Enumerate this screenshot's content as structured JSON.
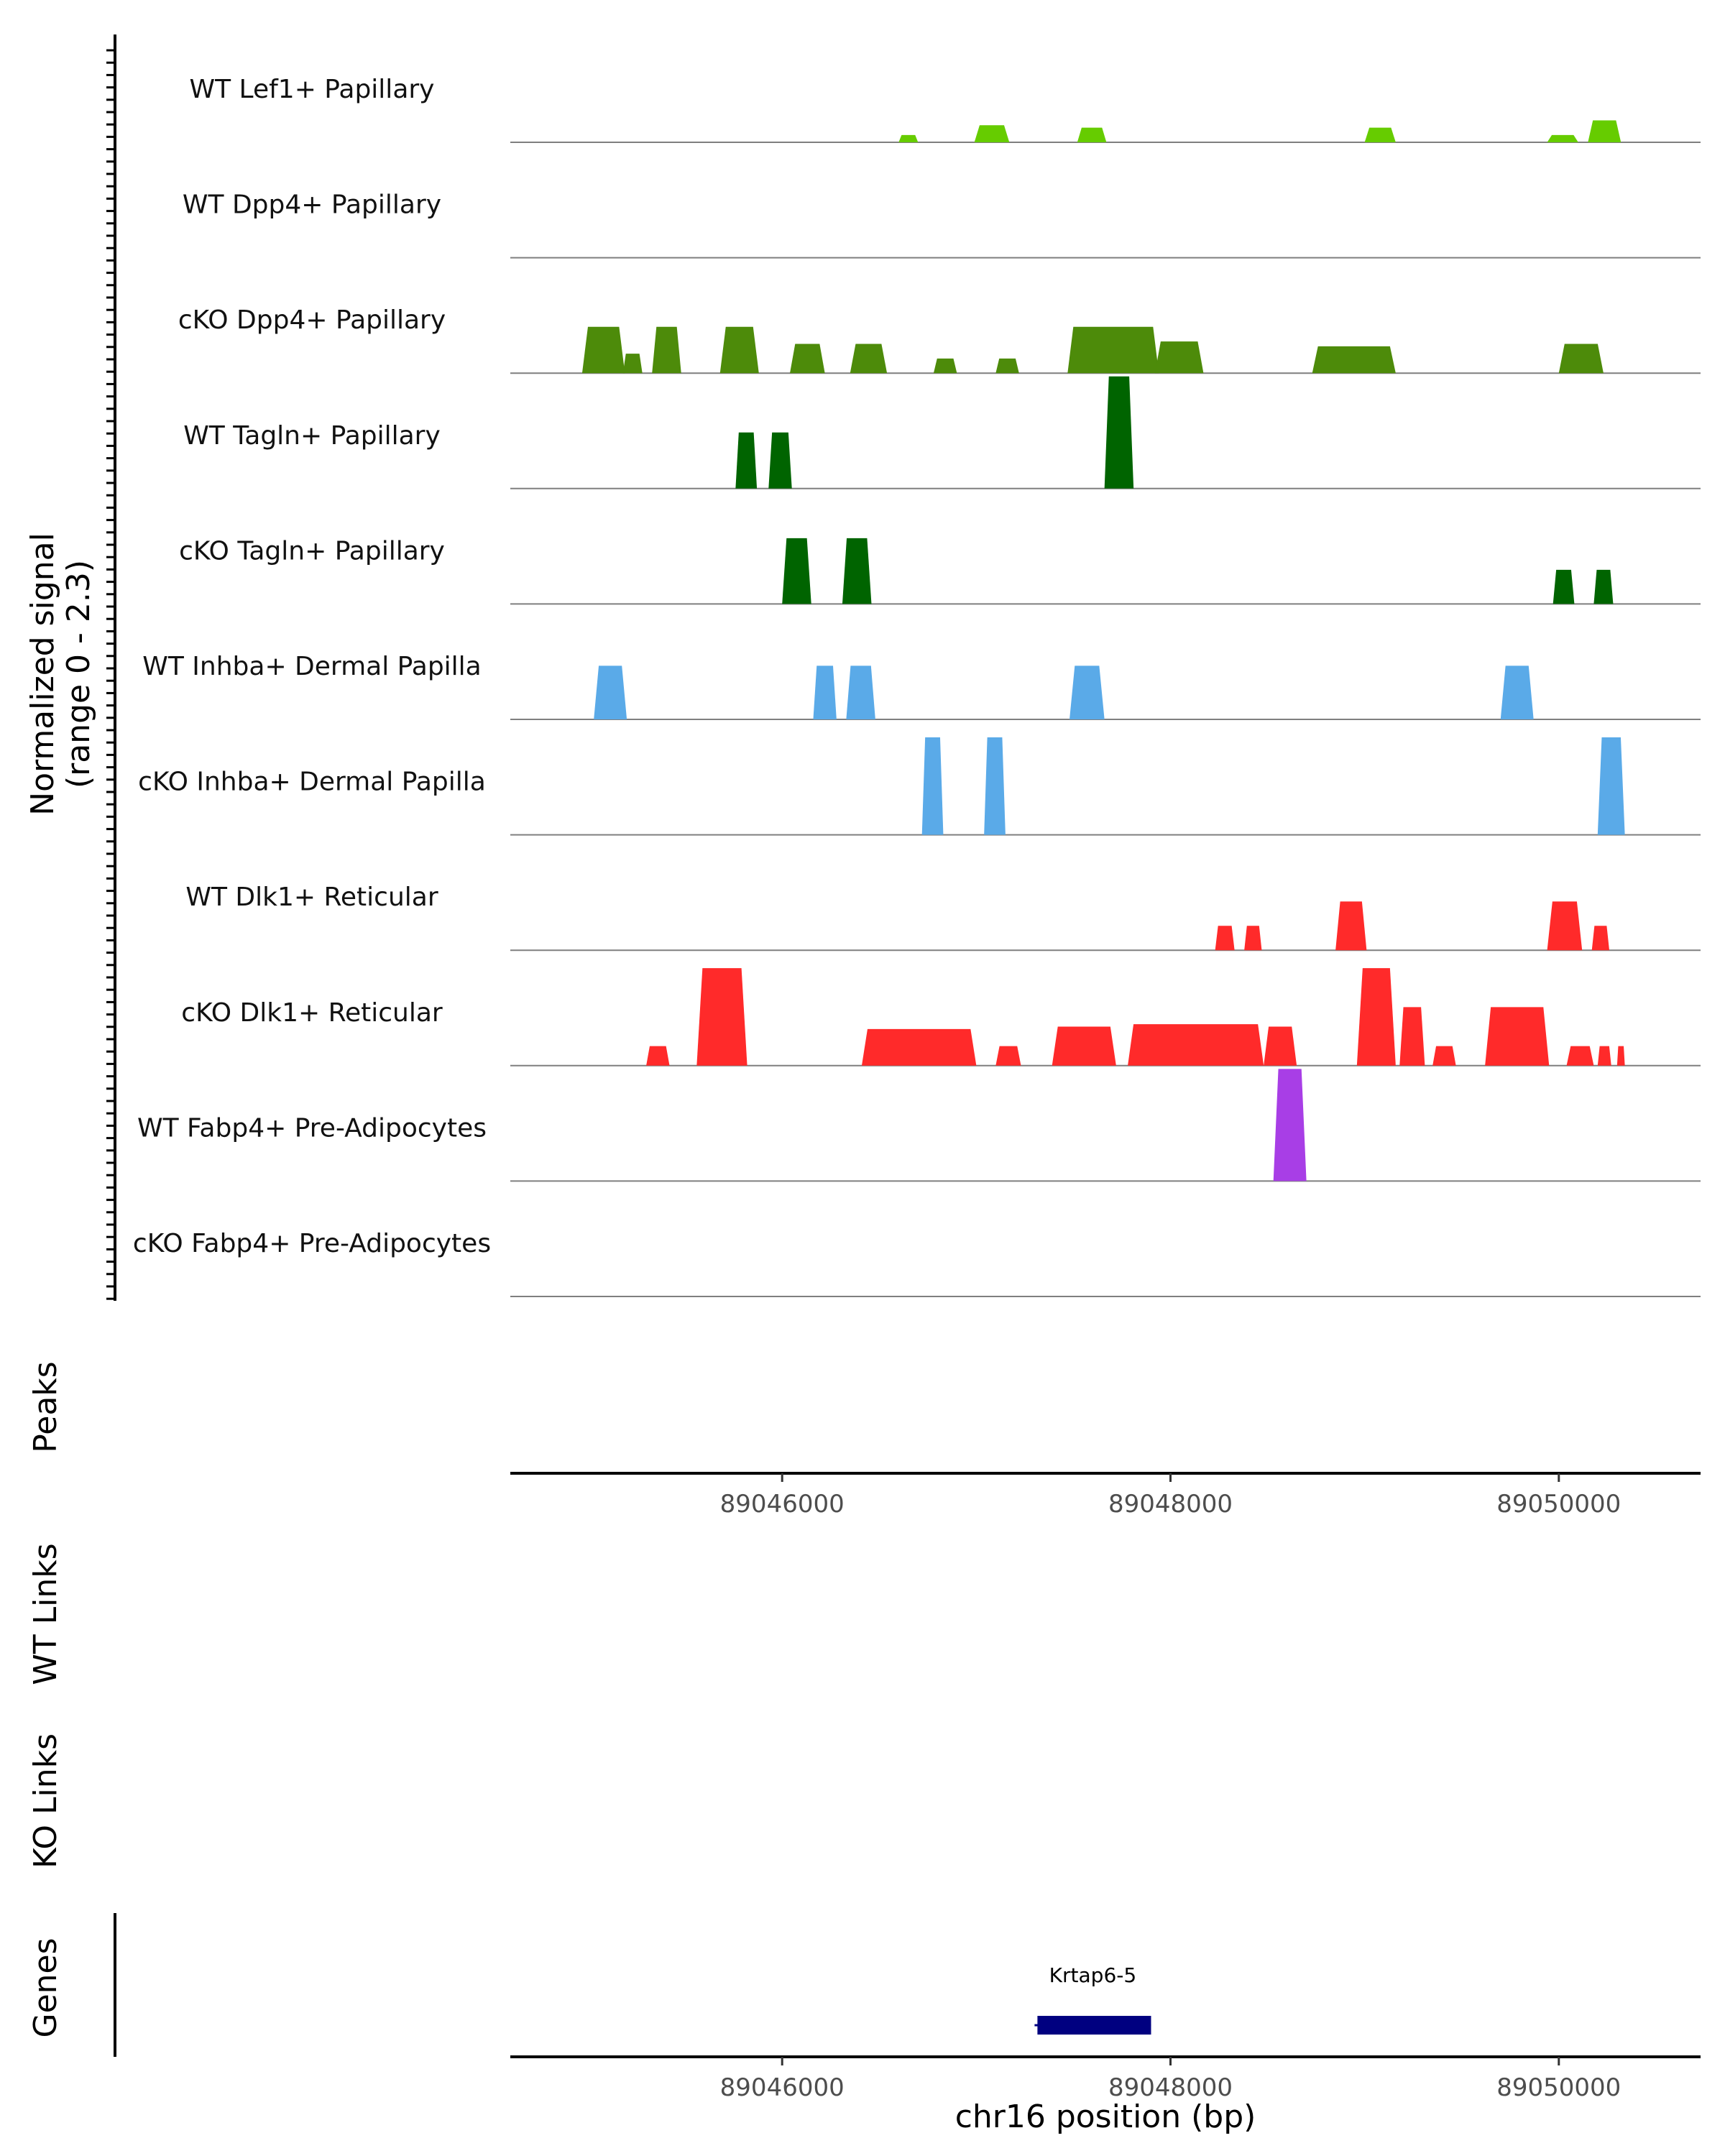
{
  "chart_data": {
    "type": "coverage-track",
    "region": {
      "chromosome": "chr16",
      "start": 89044600,
      "end": 89050730
    },
    "y_label": {
      "line1": "Normalized signal",
      "line2": "(range 0 - 2.3)"
    },
    "y_range": [
      0,
      2.3
    ],
    "x_ticks": [
      "89046000",
      "89048000",
      "89050000"
    ],
    "x_tick_values": [
      89046000,
      89048000,
      89050000
    ],
    "x_label": "chr16 position (bp)",
    "panel_labels": {
      "peaks": "Peaks",
      "wt_links": "WT Links",
      "ko_links": "KO Links",
      "genes": "Genes"
    },
    "tracks": [
      {
        "name": "WT Lef1+ Papillary",
        "color": "#66cc00",
        "peaks": [
          {
            "start": 89046600,
            "end": 89046700,
            "height": 0.15
          },
          {
            "start": 89046990,
            "end": 89047170,
            "height": 0.35
          },
          {
            "start": 89047520,
            "end": 89047670,
            "height": 0.3
          },
          {
            "start": 89049000,
            "end": 89049160,
            "height": 0.3
          },
          {
            "start": 89049940,
            "end": 89050100,
            "height": 0.15
          },
          {
            "start": 89050150,
            "end": 89050320,
            "height": 0.45
          }
        ]
      },
      {
        "name": "WT Dpp4+ Papillary",
        "color": "#4f9a0d",
        "peaks": []
      },
      {
        "name": "cKO Dpp4+ Papillary",
        "color": "#4d8b0a",
        "peaks": [
          {
            "start": 89044970,
            "end": 89045190,
            "height": 0.95
          },
          {
            "start": 89045180,
            "end": 89045280,
            "height": 0.4
          },
          {
            "start": 89045330,
            "end": 89045480,
            "height": 0.95
          },
          {
            "start": 89045680,
            "end": 89045880,
            "height": 0.95
          },
          {
            "start": 89046040,
            "end": 89046220,
            "height": 0.6
          },
          {
            "start": 89046350,
            "end": 89046540,
            "height": 0.6
          },
          {
            "start": 89046780,
            "end": 89046900,
            "height": 0.3
          },
          {
            "start": 89047100,
            "end": 89047220,
            "height": 0.3
          },
          {
            "start": 89047470,
            "end": 89047940,
            "height": 0.95
          },
          {
            "start": 89047920,
            "end": 89048170,
            "height": 0.65
          },
          {
            "start": 89048730,
            "end": 89049160,
            "height": 0.55
          },
          {
            "start": 89050000,
            "end": 89050230,
            "height": 0.6
          }
        ]
      },
      {
        "name": "WT Tagln+ Papillary",
        "color": "#006400",
        "peaks": [
          {
            "start": 89045760,
            "end": 89045870,
            "height": 1.15
          },
          {
            "start": 89045930,
            "end": 89046050,
            "height": 1.15
          },
          {
            "start": 89047660,
            "end": 89047810,
            "height": 2.3
          }
        ]
      },
      {
        "name": "cKO Tagln+ Papillary",
        "color": "#006400",
        "peaks": [
          {
            "start": 89046000,
            "end": 89046150,
            "height": 1.35
          },
          {
            "start": 89046310,
            "end": 89046460,
            "height": 1.35
          },
          {
            "start": 89049970,
            "end": 89050080,
            "height": 0.7
          },
          {
            "start": 89050180,
            "end": 89050280,
            "height": 0.7
          }
        ]
      },
      {
        "name": "WT Inhba+ Dermal Papilla",
        "color": "#5aaae8",
        "peaks": [
          {
            "start": 89045030,
            "end": 89045200,
            "height": 1.1
          },
          {
            "start": 89046160,
            "end": 89046280,
            "height": 1.1
          },
          {
            "start": 89046330,
            "end": 89046480,
            "height": 1.1
          },
          {
            "start": 89047480,
            "end": 89047660,
            "height": 1.1
          },
          {
            "start": 89049700,
            "end": 89049870,
            "height": 1.1
          }
        ]
      },
      {
        "name": "cKO Inhba+ Dermal Papilla",
        "color": "#5aaae8",
        "peaks": [
          {
            "start": 89046720,
            "end": 89046830,
            "height": 2.0
          },
          {
            "start": 89047040,
            "end": 89047150,
            "height": 2.0
          },
          {
            "start": 89050200,
            "end": 89050340,
            "height": 2.0
          }
        ]
      },
      {
        "name": "WT Dlk1+ Reticular",
        "color": "#ff2a2a",
        "peaks": [
          {
            "start": 89048230,
            "end": 89048330,
            "height": 0.5
          },
          {
            "start": 89048380,
            "end": 89048470,
            "height": 0.5
          },
          {
            "start": 89048850,
            "end": 89049010,
            "height": 1.0
          },
          {
            "start": 89049940,
            "end": 89050120,
            "height": 1.0
          },
          {
            "start": 89050170,
            "end": 89050260,
            "height": 0.5
          }
        ]
      },
      {
        "name": "cKO Dlk1+ Reticular",
        "color": "#ff2a2a",
        "peaks": [
          {
            "start": 89045300,
            "end": 89045420,
            "height": 0.4
          },
          {
            "start": 89045560,
            "end": 89045820,
            "height": 2.0
          },
          {
            "start": 89046410,
            "end": 89047000,
            "height": 0.75
          },
          {
            "start": 89047100,
            "end": 89047230,
            "height": 0.4
          },
          {
            "start": 89047390,
            "end": 89047720,
            "height": 0.8
          },
          {
            "start": 89047780,
            "end": 89048480,
            "height": 0.85
          },
          {
            "start": 89048480,
            "end": 89048650,
            "height": 0.8
          },
          {
            "start": 89048960,
            "end": 89049160,
            "height": 2.0
          },
          {
            "start": 89049180,
            "end": 89049310,
            "height": 1.2
          },
          {
            "start": 89049350,
            "end": 89049470,
            "height": 0.4
          },
          {
            "start": 89049620,
            "end": 89049950,
            "height": 1.2
          },
          {
            "start": 89050040,
            "end": 89050180,
            "height": 0.4
          },
          {
            "start": 89050200,
            "end": 89050270,
            "height": 0.4
          },
          {
            "start": 89050300,
            "end": 89050340,
            "height": 0.4
          }
        ]
      },
      {
        "name": "WT Fabp4+ Pre-Adipocytes",
        "color": "#a83ee6",
        "peaks": [
          {
            "start": 89048530,
            "end": 89048700,
            "height": 2.3
          }
        ]
      },
      {
        "name": "cKO Fabp4+ Pre-Adipocytes",
        "color": "#a83ee6",
        "peaks": []
      }
    ],
    "genes": [
      {
        "name": "Krtap6-5",
        "start": 89047300,
        "end": 89047900,
        "color": "#000080"
      }
    ]
  }
}
